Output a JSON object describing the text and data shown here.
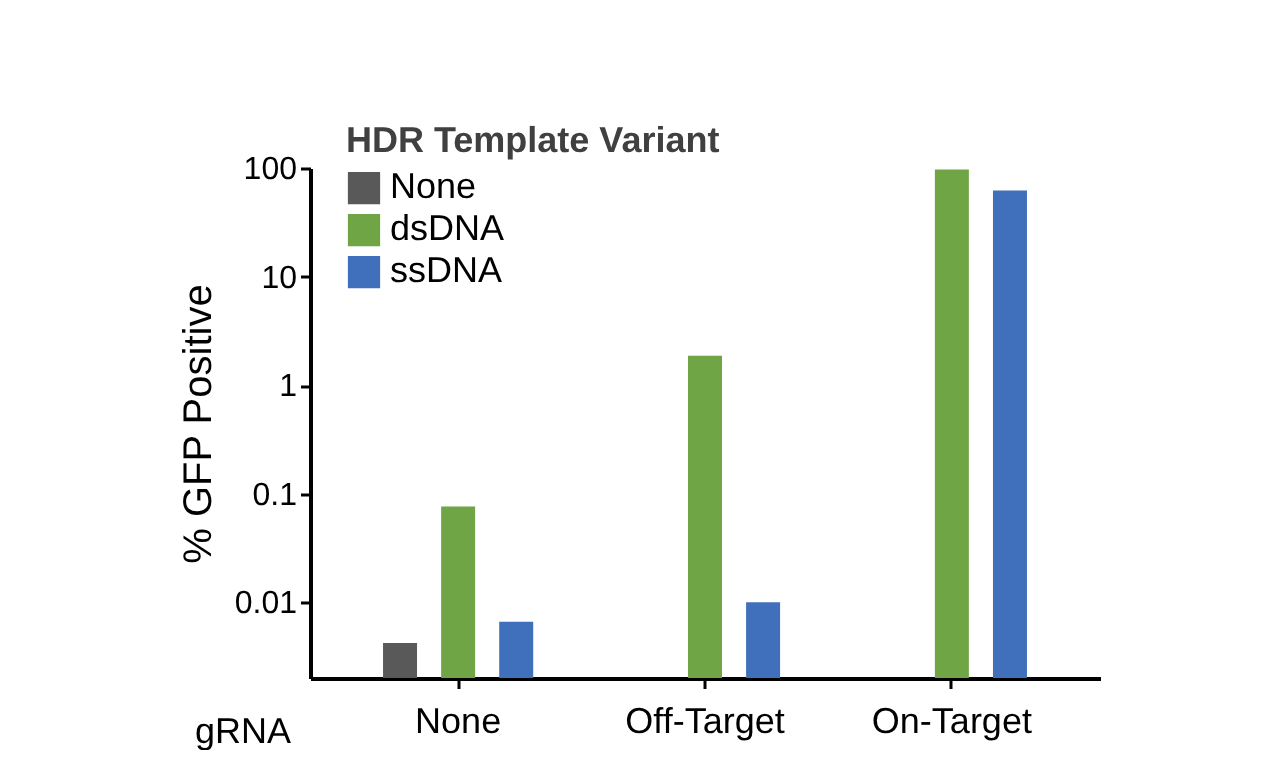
{
  "chart_data": {
    "type": "bar",
    "xlabel": "gRNA",
    "ylabel": "% GFP Positive",
    "legend_title": "HDR Template Variant",
    "categories": [
      "None",
      "Off-Target",
      "On-Target"
    ],
    "series": [
      {
        "name": "None",
        "color": "#595959",
        "values": [
          0.0042,
          null,
          null
        ]
      },
      {
        "name": "dsDNA",
        "color": "#70a546",
        "values": [
          0.076,
          1.86,
          97
        ]
      },
      {
        "name": "ssDNA",
        "color": "#4070bb",
        "values": [
          0.0066,
          0.01,
          62
        ]
      }
    ],
    "log": true,
    "ylim": [
      0.002,
      100
    ],
    "yticks": [
      0.01,
      0.1,
      1,
      10,
      100
    ],
    "grid": false,
    "legend": "top left"
  }
}
